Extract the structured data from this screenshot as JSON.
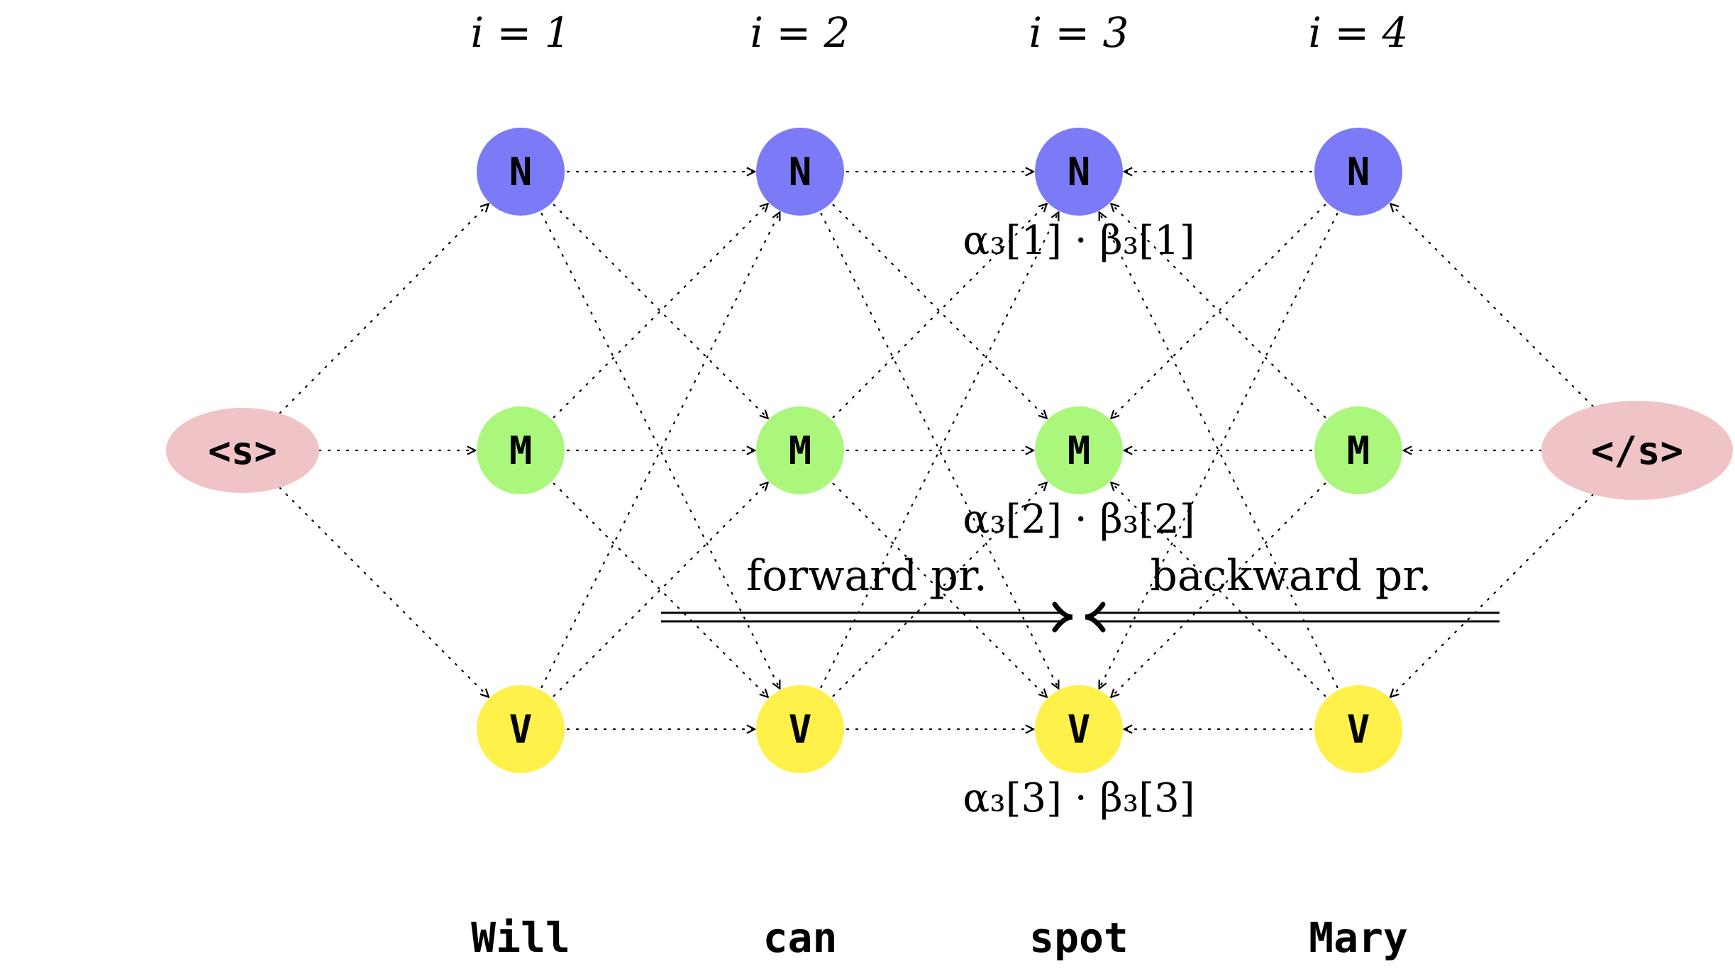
{
  "columns": [
    {
      "index_label": "i = 1",
      "word": "Will"
    },
    {
      "index_label": "i = 2",
      "word": "can"
    },
    {
      "index_label": "i = 3",
      "word": "spot"
    },
    {
      "index_label": "i = 4",
      "word": "Mary"
    }
  ],
  "states": [
    {
      "label": "N",
      "color": "#7b7bf7"
    },
    {
      "label": "M",
      "color": "#aaf77c"
    },
    {
      "label": "V",
      "color": "#fff04a"
    }
  ],
  "start_node": {
    "label": "<s>",
    "color": "#f0c4c6"
  },
  "end_node": {
    "label": "</s>",
    "color": "#f0c4c6"
  },
  "annotations": [
    "α₃[1] · β₃[1]",
    "α₃[2] · β₃[2]",
    "α₃[3] · β₃[3]"
  ],
  "forward_label": "forward pr.",
  "backward_label": "backward pr."
}
